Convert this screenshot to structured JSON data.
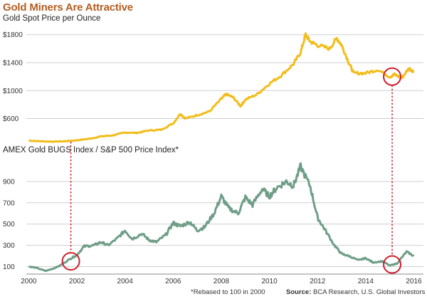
{
  "title": "Gold Miners Are Attractive",
  "footnote": "*Rebased to 100 in 2000",
  "source_label": "Source:",
  "source_text": "BCA Research, U.S. Global Investors",
  "colors": {
    "title": "#b35e22",
    "gold": "#f2bd1c",
    "bugs": "#6f9e88",
    "circle": "#cc1f2e",
    "grid": "#cfcfcf"
  },
  "chart_data": [
    {
      "type": "line",
      "title": "Gold Spot Price per Ounce",
      "ylim": [
        300,
        1950
      ],
      "yticks": [
        600,
        1000,
        1400,
        1800
      ],
      "ytick_labels": [
        "$600",
        "$1000",
        "$1400",
        "$1800"
      ],
      "series": [
        {
          "x": [
            2000.0,
            2000.5,
            2001.0,
            2001.5,
            2002.0,
            2002.5,
            2003.0,
            2003.5,
            2004.0,
            2004.5,
            2005.0,
            2005.5,
            2006.0,
            2006.3,
            2006.5,
            2007.0,
            2007.5,
            2008.0,
            2008.2,
            2008.5,
            2008.8,
            2009.0,
            2009.5,
            2010.0,
            2010.5,
            2011.0,
            2011.3,
            2011.5,
            2011.7,
            2012.0,
            2012.5,
            2012.8,
            2013.0,
            2013.3,
            2013.5,
            2014.0,
            2014.5,
            2015.0,
            2015.2,
            2015.5,
            2015.8,
            2016.0
          ],
          "values": [
            285,
            275,
            270,
            275,
            290,
            310,
            345,
            360,
            400,
            395,
            430,
            440,
            530,
            670,
            600,
            650,
            700,
            880,
            950,
            900,
            780,
            870,
            950,
            1100,
            1220,
            1380,
            1550,
            1800,
            1700,
            1650,
            1600,
            1750,
            1650,
            1400,
            1250,
            1250,
            1300,
            1200,
            1230,
            1180,
            1320,
            1270
          ]
        }
      ],
      "annotations": [
        "circle at ~2015 low"
      ]
    },
    {
      "type": "line",
      "title": "AMEX Gold BUGS Index / S&P 500 Price Index*",
      "ylim": [
        30,
        1120
      ],
      "yticks": [
        100,
        300,
        500,
        700,
        900
      ],
      "ytick_labels": [
        "100",
        "300",
        "500",
        "700",
        "900"
      ],
      "xlim": [
        1999.9,
        2016.4
      ],
      "xticks": [
        2000,
        2002,
        2004,
        2006,
        2008,
        2010,
        2012,
        2014,
        2016
      ],
      "xtick_labels": [
        "2000",
        "2002",
        "2004",
        "2006",
        "2008",
        "2010",
        "2012",
        "2014",
        "2016"
      ],
      "series": [
        {
          "x": [
            2000.0,
            2000.3,
            2000.7,
            2001.0,
            2001.3,
            2001.7,
            2002.0,
            2002.3,
            2002.7,
            2003.0,
            2003.3,
            2003.7,
            2004.0,
            2004.3,
            2004.7,
            2005.0,
            2005.3,
            2005.7,
            2006.0,
            2006.3,
            2006.7,
            2007.0,
            2007.3,
            2007.7,
            2008.0,
            2008.3,
            2008.7,
            2009.0,
            2009.3,
            2009.7,
            2010.0,
            2010.3,
            2010.7,
            2011.0,
            2011.3,
            2011.7,
            2012.0,
            2012.3,
            2012.7,
            2013.0,
            2013.3,
            2013.7,
            2014.0,
            2014.3,
            2014.7,
            2015.0,
            2015.3,
            2015.7,
            2016.0
          ],
          "values": [
            100,
            90,
            60,
            80,
            110,
            170,
            210,
            290,
            300,
            330,
            300,
            370,
            440,
            360,
            410,
            350,
            330,
            400,
            510,
            480,
            520,
            440,
            470,
            600,
            760,
            650,
            600,
            750,
            680,
            830,
            760,
            840,
            900,
            860,
            1040,
            850,
            560,
            450,
            300,
            220,
            200,
            160,
            180,
            140,
            150,
            110,
            130,
            240,
            200
          ]
        }
      ],
      "annotations": [
        "circle at ~2001.7",
        "circle at ~2015 low"
      ]
    }
  ]
}
